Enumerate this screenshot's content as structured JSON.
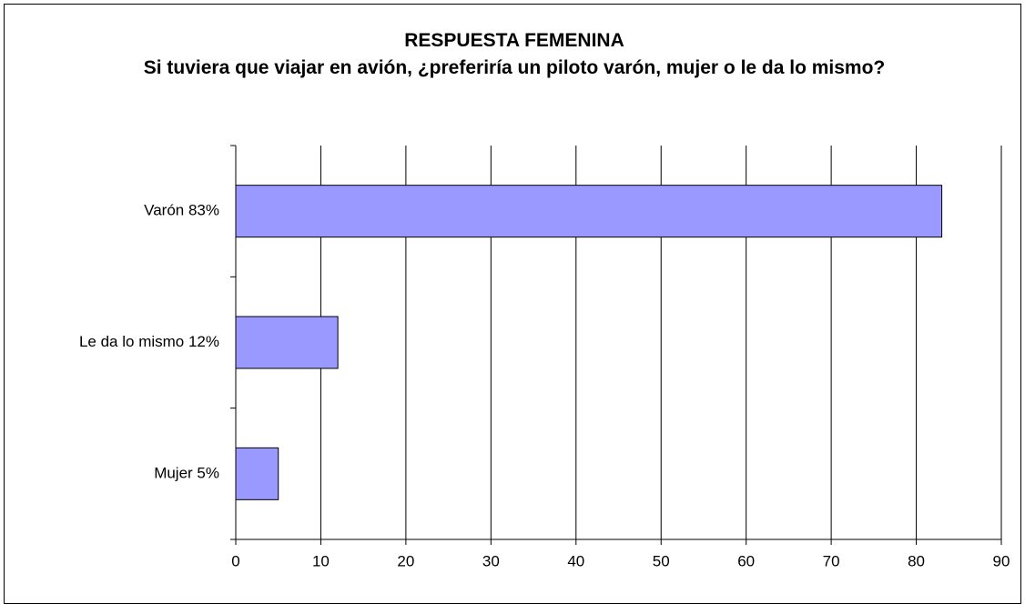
{
  "chart_data": {
    "type": "bar",
    "orientation": "horizontal",
    "title": "RESPUESTA FEMENINA",
    "subtitle": "Si tuviera que viajar en avión, ¿preferiría un piloto varón, mujer o le da lo mismo?",
    "categories": [
      "Varón  83%",
      "Le da lo mismo  12%",
      "Mujer  5%"
    ],
    "values": [
      83,
      12,
      5
    ],
    "color": "#9999ff",
    "xlim": [
      0,
      90
    ],
    "xticks": [
      0,
      10,
      20,
      30,
      40,
      50,
      60,
      70,
      80,
      90
    ],
    "grid": true
  }
}
